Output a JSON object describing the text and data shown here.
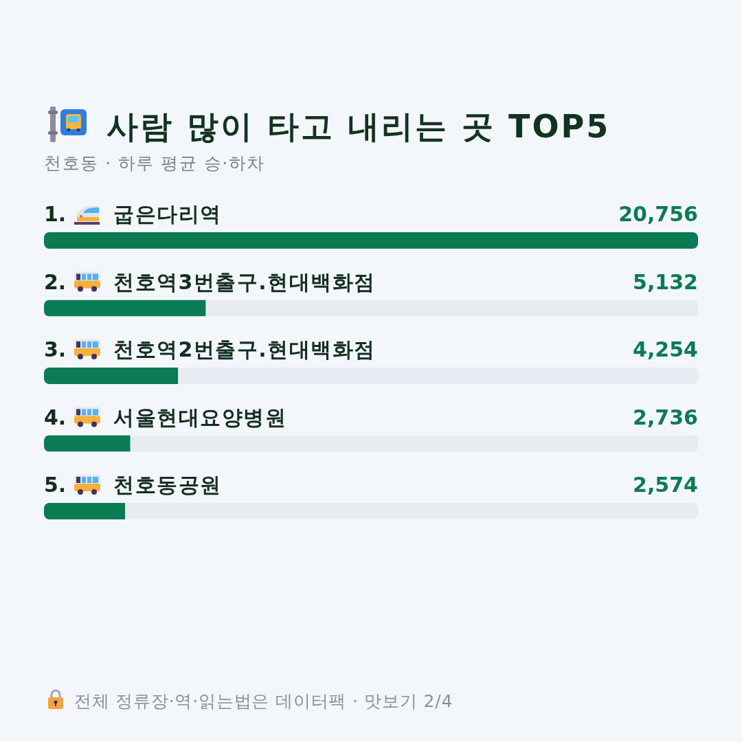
{
  "chart_data": {
    "type": "bar",
    "orientation": "horizontal",
    "title": "사람 많이 타고 내리는 곳 TOP5",
    "subtitle": "천호동 · 하루 평균 승·하차",
    "categories": [
      "1. 굽은다리역",
      "2. 천호역3번출구.현대백화점",
      "3. 천호역2번출구.현대백화점",
      "4. 서울현대요양병원",
      "5. 천호동공원"
    ],
    "values": [
      20756,
      5132,
      4254,
      2736,
      2574
    ],
    "value_labels": [
      "20,756",
      "5,132",
      "4,254",
      "2,736",
      "2,574"
    ],
    "color": "#0b7b53",
    "tick_labels": "y",
    "annotations": [
      "전체 정류장·역·읽는법은 데이터팩 · 맛보기 2/4"
    ]
  }
}
